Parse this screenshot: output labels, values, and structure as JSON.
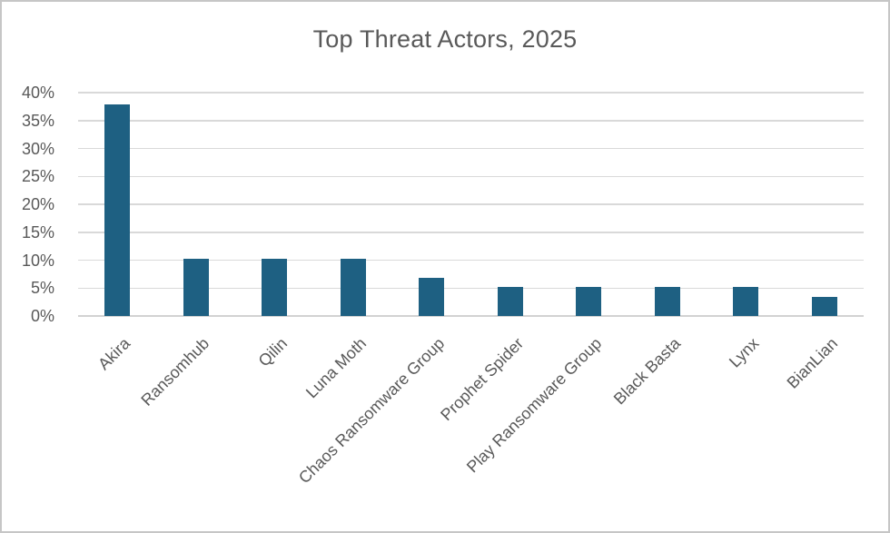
{
  "chart_data": {
    "type": "bar",
    "title": "Top Threat Actors, 2025",
    "categories": [
      "Akira",
      "Ransomhub",
      "Qilin",
      "Luna Moth",
      "Chaos Ransomware Group",
      "Prophet Spider",
      "Play Ransomware Group",
      "Black Basta",
      "Lynx",
      "BianLian"
    ],
    "values": [
      37.9,
      10.3,
      10.3,
      10.3,
      6.9,
      5.2,
      5.2,
      5.2,
      5.2,
      3.4
    ],
    "xlabel": "",
    "ylabel": "",
    "ylim": [
      0,
      40
    ],
    "ytick_step": 5,
    "ytick_labels": [
      "0%",
      "5%",
      "10%",
      "15%",
      "20%",
      "25%",
      "30%",
      "35%",
      "40%"
    ],
    "grid": true,
    "legend": false,
    "colors": {
      "bar": "#1e6082",
      "grid": "#d9d9d9",
      "axis": "#d2d2d2",
      "text": "#595959",
      "frame_border": "#c6c6c6",
      "background": "#ffffff"
    }
  }
}
